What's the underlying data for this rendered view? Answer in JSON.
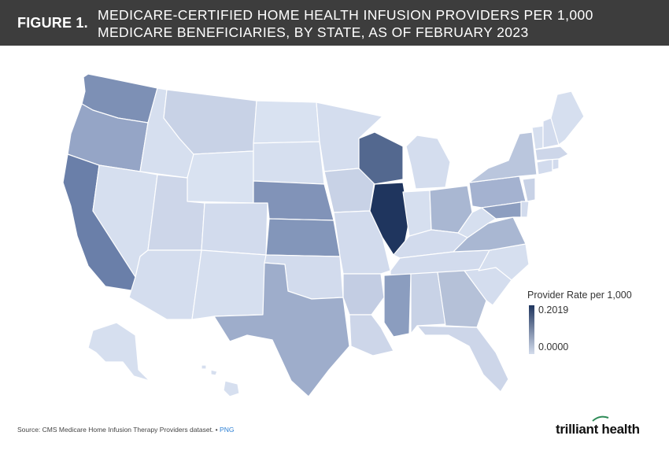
{
  "header": {
    "figure_label": "FIGURE 1.",
    "title": "MEDICARE-CERTIFIED HOME HEALTH INFUSION PROVIDERS PER 1,000 MEDICARE BENEFICIARIES, BY STATE, AS OF FEBRUARY 2023"
  },
  "legend": {
    "title": "Provider Rate per 1,000",
    "max": "0.2019",
    "min": "0.0000",
    "color_max": "#1f355e",
    "color_min": "#d3dcec"
  },
  "footer": {
    "source": "Source: CMS Medicare Home Infusion Therapy Providers dataset.",
    "separator": "•",
    "link": "PNG"
  },
  "brand": {
    "name": "trilliant health",
    "accent": "#2e8b57"
  },
  "states": [
    {
      "name": "Washington",
      "color": "#7d90b5"
    },
    {
      "name": "Oregon",
      "color": "#95a5c6"
    },
    {
      "name": "California",
      "color": "#6a7fa9"
    },
    {
      "name": "Idaho",
      "color": "#d6dfef"
    },
    {
      "name": "Nevada",
      "color": "#d6dfef"
    },
    {
      "name": "Montana",
      "color": "#c8d2e6"
    },
    {
      "name": "Wyoming",
      "color": "#d9e2f1"
    },
    {
      "name": "Utah",
      "color": "#cdd6e9"
    },
    {
      "name": "Arizona",
      "color": "#d4ddee"
    },
    {
      "name": "Colorado",
      "color": "#d2dbed"
    },
    {
      "name": "New Mexico",
      "color": "#d6dfef"
    },
    {
      "name": "North Dakota",
      "color": "#d9e2f1"
    },
    {
      "name": "South Dakota",
      "color": "#d6dfef"
    },
    {
      "name": "Nebraska",
      "color": "#8193b8"
    },
    {
      "name": "Kansas",
      "color": "#8396ba"
    },
    {
      "name": "Oklahoma",
      "color": "#d2dbed"
    },
    {
      "name": "Texas",
      "color": "#9eadcb"
    },
    {
      "name": "Minnesota",
      "color": "#d4ddee"
    },
    {
      "name": "Iowa",
      "color": "#c8d2e6"
    },
    {
      "name": "Missouri",
      "color": "#d2dbed"
    },
    {
      "name": "Arkansas",
      "color": "#c3cde3"
    },
    {
      "name": "Louisiana",
      "color": "#cdd6e9"
    },
    {
      "name": "Wisconsin",
      "color": "#53688f"
    },
    {
      "name": "Illinois",
      "color": "#1f355e"
    },
    {
      "name": "Michigan",
      "color": "#d4ddee"
    },
    {
      "name": "Indiana",
      "color": "#d6dfef"
    },
    {
      "name": "Ohio",
      "color": "#a9b7d2"
    },
    {
      "name": "Kentucky",
      "color": "#d2dbed"
    },
    {
      "name": "Tennessee",
      "color": "#d2dbed"
    },
    {
      "name": "Mississippi",
      "color": "#8b9dbf"
    },
    {
      "name": "Alabama",
      "color": "#c8d2e6"
    },
    {
      "name": "Georgia",
      "color": "#b5c1d8"
    },
    {
      "name": "Florida",
      "color": "#cdd6e9"
    },
    {
      "name": "South Carolina",
      "color": "#d4ddee"
    },
    {
      "name": "North Carolina",
      "color": "#d6dfef"
    },
    {
      "name": "Virginia",
      "color": "#a9b7d2"
    },
    {
      "name": "West Virginia",
      "color": "#d6dfef"
    },
    {
      "name": "Pennsylvania",
      "color": "#a4b2d0"
    },
    {
      "name": "New York",
      "color": "#bac6dd"
    },
    {
      "name": "Maryland",
      "color": "#8d9ec0"
    },
    {
      "name": "Delaware",
      "color": "#d2dbed"
    },
    {
      "name": "New Jersey",
      "color": "#c8d2e6"
    },
    {
      "name": "Connecticut",
      "color": "#d2dbed"
    },
    {
      "name": "Rhode Island",
      "color": "#d2dbed"
    },
    {
      "name": "Massachusetts",
      "color": "#cdd6e9"
    },
    {
      "name": "Vermont",
      "color": "#d6dfef"
    },
    {
      "name": "New Hampshire",
      "color": "#d2dbed"
    },
    {
      "name": "Maine",
      "color": "#d6dfef"
    },
    {
      "name": "Alaska",
      "color": "#d6dfef"
    },
    {
      "name": "Hawaii",
      "color": "#d6dfef"
    }
  ]
}
